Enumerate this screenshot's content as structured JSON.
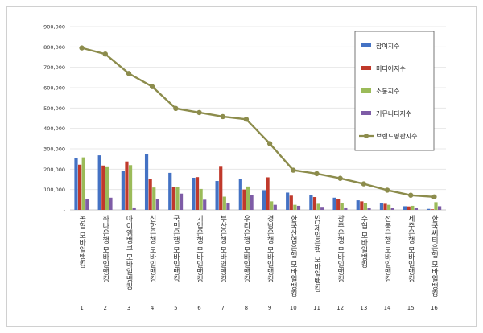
{
  "chart_data": {
    "type": "bar",
    "title": "",
    "xlabel": "",
    "ylabel": "",
    "ylim": [
      0,
      900000
    ],
    "y_ticks": [
      "900,000",
      "800,000",
      "700,000",
      "600,000",
      "500,000",
      "400,000",
      "300,000",
      "200,000",
      "100,000",
      "-"
    ],
    "categories": [
      "농협 모바일뱅킹",
      "하나은행 모바일뱅킹",
      "아이엠뱅크 모바일뱅킹",
      "신한은행 모바일뱅킹",
      "국민은행 모바일뱅킹",
      "기업은행 모바일뱅킹",
      "부산은행 모바일뱅킹",
      "우리은행 모바일뱅킹",
      "경남은행 모바일뱅킹",
      "한국산업은행 모바일뱅킹",
      "SC제일은행 모바일뱅킹",
      "광주은행 모바일뱅킹",
      "수협 모바일뱅킹",
      "전북은행 모바일뱅킹",
      "제주은행 모바일뱅킹",
      "한국씨티은행 모바일뱅킹"
    ],
    "index_labels": [
      "1",
      "2",
      "3",
      "4",
      "5",
      "6",
      "7",
      "8",
      "9",
      "10",
      "11",
      "12",
      "13",
      "14",
      "15",
      "16"
    ],
    "series": [
      {
        "name": "참여지수",
        "color": "#4472C4",
        "values": [
          255000,
          268000,
          192000,
          276000,
          182000,
          158000,
          142000,
          150000,
          97000,
          85000,
          72000,
          60000,
          47000,
          33000,
          18000,
          5000
        ]
      },
      {
        "name": "미디어지수",
        "color": "#C0392B",
        "values": [
          222000,
          218000,
          238000,
          152000,
          113000,
          161000,
          212000,
          100000,
          160000,
          70000,
          63000,
          52000,
          42000,
          30000,
          17000,
          3000
        ]
      },
      {
        "name": "소통지수",
        "color": "#9BBB59",
        "values": [
          258000,
          210000,
          220000,
          110000,
          113000,
          103000,
          65000,
          115000,
          42000,
          25000,
          30000,
          32000,
          33000,
          25000,
          20000,
          38000
        ]
      },
      {
        "name": "커뮤니티지수",
        "color": "#7E5CA6",
        "values": [
          55000,
          60000,
          12000,
          55000,
          80000,
          50000,
          32000,
          72000,
          25000,
          20000,
          15000,
          12000,
          10000,
          10000,
          10000,
          18000
        ]
      }
    ],
    "line_series": {
      "name": "브랜드평판지수",
      "color": "#8C8C4C",
      "values": [
        795000,
        765000,
        670000,
        605000,
        498000,
        478000,
        458000,
        445000,
        326000,
        195000,
        178000,
        155000,
        128000,
        97000,
        72000,
        64000
      ]
    },
    "grid": true,
    "legend_position": "right"
  }
}
